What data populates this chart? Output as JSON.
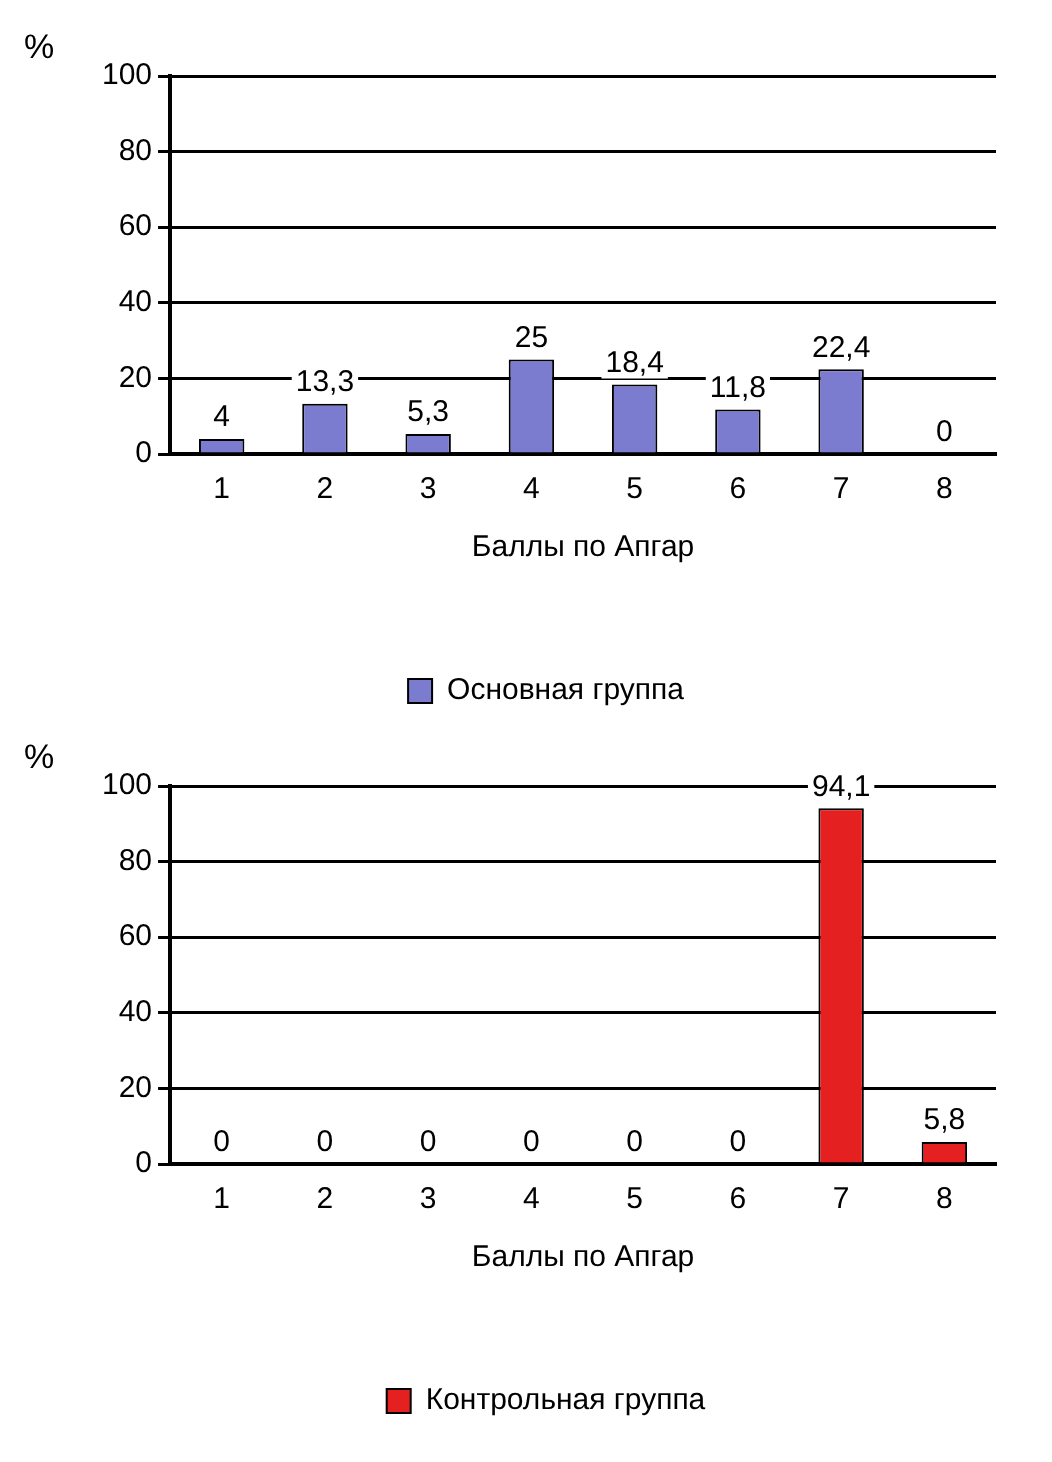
{
  "chart_data": [
    {
      "type": "bar",
      "ylabel": "%",
      "xlabel": "Баллы по Апгар",
      "categories": [
        "1",
        "2",
        "3",
        "4",
        "5",
        "6",
        "7",
        "8"
      ],
      "series": [
        {
          "name": "Основная группа",
          "color": "#7b7bd0",
          "values": [
            4,
            13.3,
            5.3,
            25,
            18.4,
            11.8,
            22.4,
            0
          ],
          "value_labels": [
            "4",
            "13,3",
            "5,3",
            "25",
            "18,4",
            "11,8",
            "22,4",
            "0"
          ]
        }
      ],
      "ylim": [
        0,
        100
      ],
      "yticks": [
        0,
        20,
        40,
        60,
        80,
        100
      ],
      "grid": "y",
      "legend": "bottom"
    },
    {
      "type": "bar",
      "ylabel": "%",
      "xlabel": "Баллы по Апгар",
      "categories": [
        "1",
        "2",
        "3",
        "4",
        "5",
        "6",
        "7",
        "8"
      ],
      "series": [
        {
          "name": "Контрольная группа",
          "color": "#e42020",
          "values": [
            0,
            0,
            0,
            0,
            0,
            0,
            94.1,
            5.8
          ],
          "value_labels": [
            "0",
            "0",
            "0",
            "0",
            "0",
            "0",
            "94,1",
            "5,8"
          ]
        }
      ],
      "ylim": [
        0,
        100
      ],
      "yticks": [
        0,
        20,
        40,
        60,
        80,
        100
      ],
      "grid": "y",
      "legend": "bottom"
    }
  ]
}
